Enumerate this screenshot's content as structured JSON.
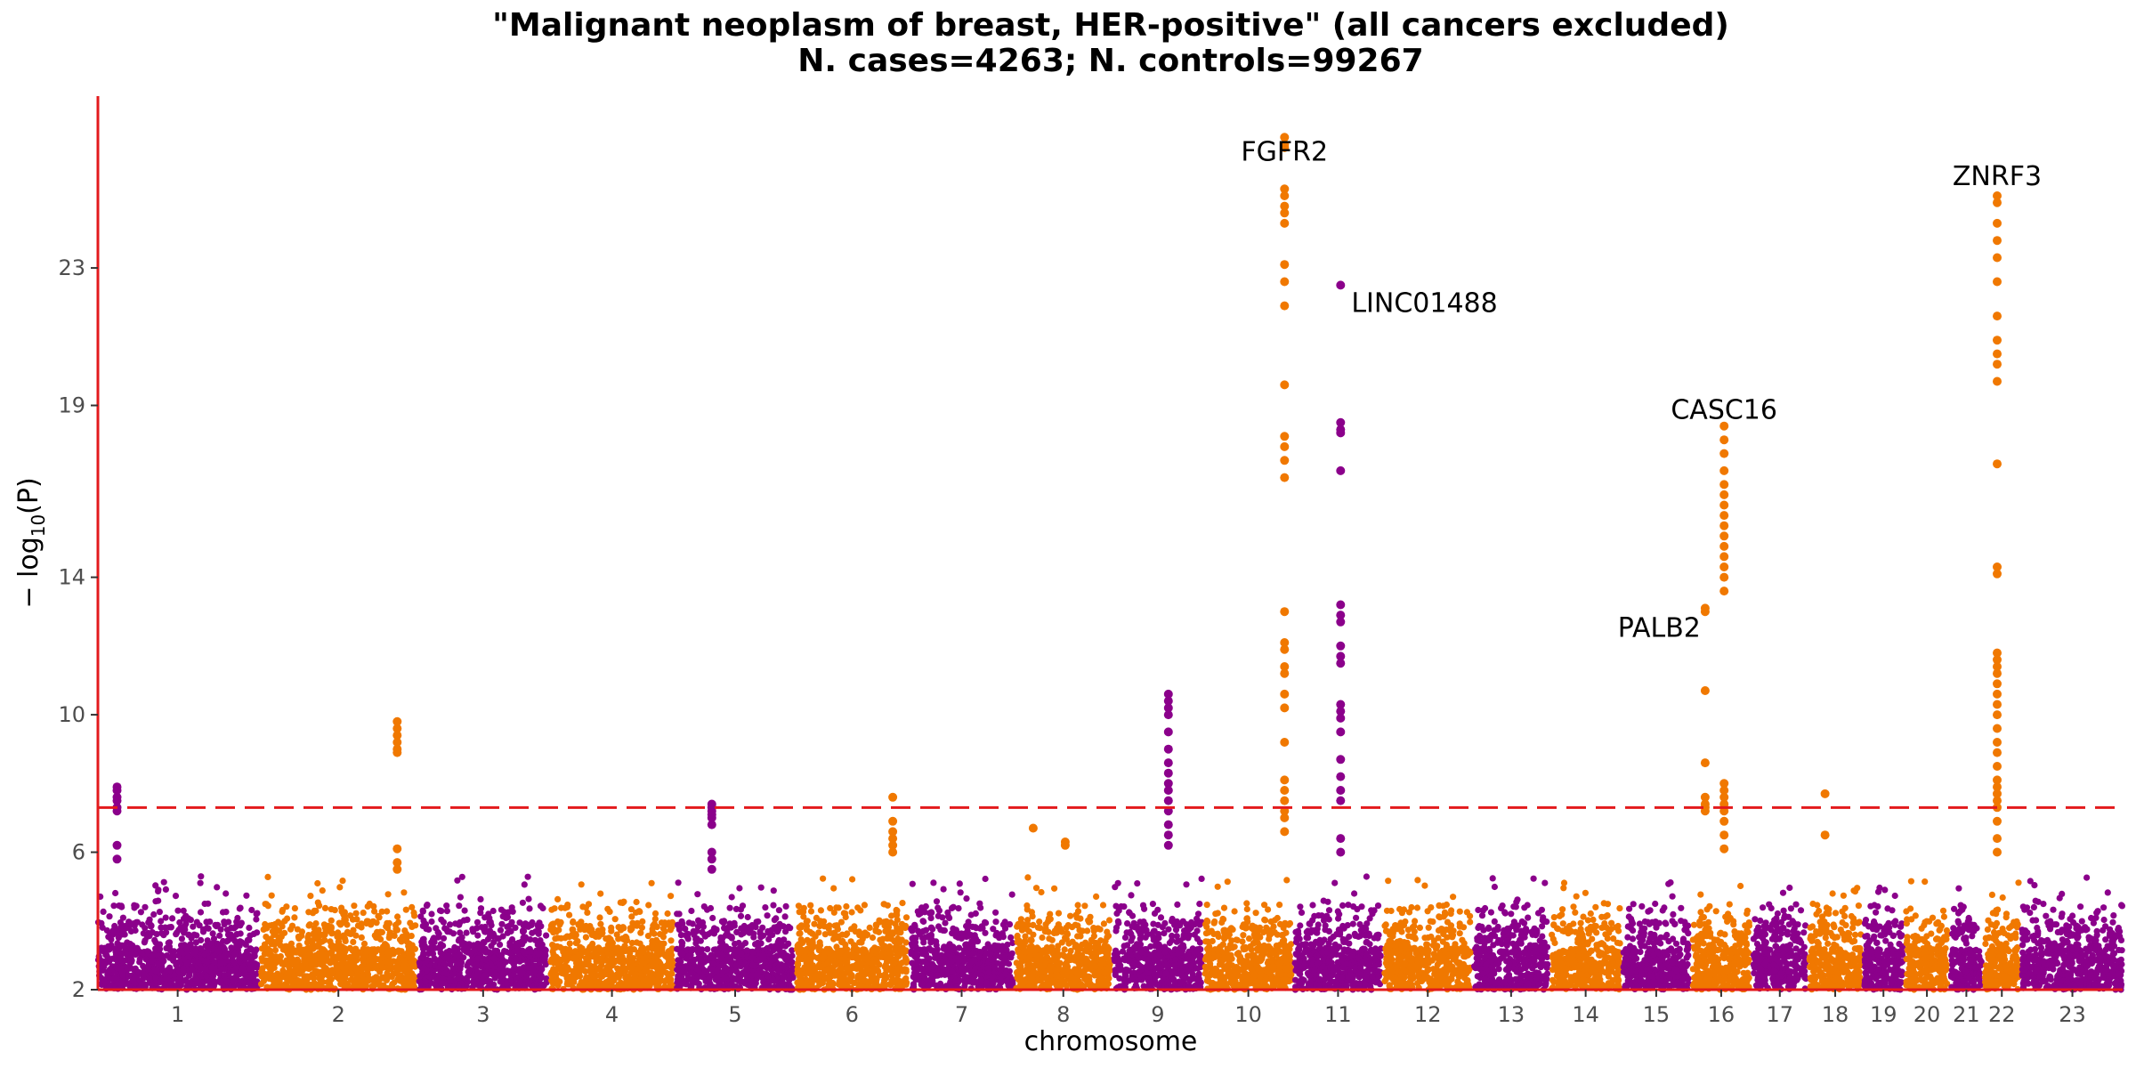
{
  "chart_data": {
    "type": "scatter",
    "title_line1": "\"Malignant neoplasm of breast, HER-positive\" (all cancers excluded)",
    "title_line2": "N. cases=4263; N. controls=99267",
    "xlabel": "chromosome",
    "ylabel_main": "− log",
    "ylabel_sub": "10",
    "ylabel_tail": "(P)",
    "ylim": [
      2,
      28
    ],
    "yticks": [
      "2",
      "6",
      "10",
      "14",
      "19",
      "23"
    ],
    "significance_threshold": 7.3,
    "colors": {
      "odd": "#8b008b",
      "even": "#f07800",
      "threshold": "#e31a1c",
      "axis": "#e31a1c"
    },
    "chromosomes": [
      {
        "label": "1",
        "rel_size": 1.0
      },
      {
        "label": "2",
        "rel_size": 0.97
      },
      {
        "label": "3",
        "rel_size": 0.8
      },
      {
        "label": "4",
        "rel_size": 0.77
      },
      {
        "label": "5",
        "rel_size": 0.73
      },
      {
        "label": "6",
        "rel_size": 0.69
      },
      {
        "label": "7",
        "rel_size": 0.64
      },
      {
        "label": "8",
        "rel_size": 0.59
      },
      {
        "label": "9",
        "rel_size": 0.55
      },
      {
        "label": "10",
        "rel_size": 0.54
      },
      {
        "label": "11",
        "rel_size": 0.54
      },
      {
        "label": "12",
        "rel_size": 0.54
      },
      {
        "label": "13",
        "rel_size": 0.46
      },
      {
        "label": "14",
        "rel_size": 0.43
      },
      {
        "label": "15",
        "rel_size": 0.41
      },
      {
        "label": "16",
        "rel_size": 0.36
      },
      {
        "label": "17",
        "rel_size": 0.33
      },
      {
        "label": "18",
        "rel_size": 0.32
      },
      {
        "label": "19",
        "rel_size": 0.24
      },
      {
        "label": "20",
        "rel_size": 0.26
      },
      {
        "label": "21",
        "rel_size": 0.19
      },
      {
        "label": "22",
        "rel_size": 0.21
      },
      {
        "label": "23",
        "rel_size": 0.63
      }
    ],
    "peaks": [
      {
        "chrom": "1",
        "pos": 0.12,
        "values": [
          7.2,
          7.3,
          7.5,
          7.6,
          7.8,
          7.9,
          6.2,
          5.8
        ]
      },
      {
        "chrom": "2",
        "pos": 0.88,
        "values": [
          8.9,
          9.0,
          9.2,
          9.4,
          9.6,
          9.8,
          6.1,
          5.7,
          5.5
        ]
      },
      {
        "chrom": "5",
        "pos": 0.3,
        "values": [
          6.8,
          7.0,
          7.1,
          7.2,
          7.3,
          7.4,
          6.0,
          5.8,
          5.5
        ]
      },
      {
        "chrom": "6",
        "pos": 0.87,
        "values": [
          7.6,
          6.9,
          6.6,
          6.4,
          6.2,
          6.0
        ]
      },
      {
        "chrom": "8",
        "pos": 0.18,
        "values": [
          6.7
        ]
      },
      {
        "chrom": "8",
        "pos": 0.52,
        "values": [
          6.3,
          6.2
        ]
      },
      {
        "chrom": "9",
        "pos": 0.62,
        "values": [
          7.5,
          7.8,
          8.0,
          8.3,
          8.6,
          9.0,
          9.5,
          10.0,
          10.2,
          10.4,
          10.6,
          7.2,
          6.8,
          6.5,
          6.2
        ]
      },
      {
        "chrom": "10",
        "pos": 0.92,
        "values": [
          26.8,
          26.6,
          26.5,
          25.3,
          25.1,
          24.8,
          24.6,
          24.3,
          23.1,
          22.6,
          21.9,
          19.6,
          18.1,
          17.8,
          17.4,
          16.9,
          13.0,
          12.1,
          11.9,
          11.4,
          11.2,
          10.6,
          10.2,
          9.2,
          8.1,
          7.8,
          7.5,
          7.2,
          7.0,
          6.6
        ]
      },
      {
        "chrom": "11",
        "pos": 0.53,
        "values": [
          22.5,
          18.5,
          18.3,
          18.2,
          17.1,
          13.2,
          12.9,
          12.7,
          12.0,
          11.7,
          11.5,
          10.3,
          10.1,
          9.9,
          9.5,
          8.7,
          8.2,
          7.8,
          7.5,
          6.4,
          6.0
        ]
      },
      {
        "chrom": "16",
        "pos": 0.22,
        "values": [
          13.1,
          13.0,
          10.7,
          8.6,
          7.6,
          7.4,
          7.3,
          7.2
        ]
      },
      {
        "chrom": "16",
        "pos": 0.55,
        "values": [
          18.4,
          18.0,
          17.6,
          17.1,
          16.7,
          16.4,
          16.1,
          15.8,
          15.5,
          15.2,
          14.9,
          14.6,
          14.3,
          14.0,
          13.6,
          8.0,
          7.8,
          7.6,
          7.4,
          7.2,
          6.9,
          6.5,
          6.1
        ]
      },
      {
        "chrom": "18",
        "pos": 0.3,
        "values": [
          7.7,
          6.5
        ]
      },
      {
        "chrom": "22",
        "pos": 0.36,
        "values": [
          25.1,
          24.9,
          24.3,
          23.8,
          23.3,
          22.6,
          21.6,
          20.9,
          20.5,
          20.2,
          19.7,
          17.3,
          14.3,
          14.1,
          11.8,
          11.6,
          11.4,
          11.2,
          10.9,
          10.6,
          10.3,
          10.0,
          9.6,
          9.2,
          8.9,
          8.5,
          8.1,
          7.9,
          7.7,
          7.5,
          7.3,
          6.9,
          6.4,
          6.0
        ]
      }
    ],
    "annotations": [
      {
        "text": "FGFR2",
        "chrom": "10",
        "pos": 0.92,
        "y": 27.0,
        "anchor": "middle",
        "dx": 0,
        "dy": 34
      },
      {
        "text": "LINC01488",
        "chrom": "11",
        "pos": 0.53,
        "y": 22.5,
        "anchor": "start",
        "dx": 12,
        "dy": 30
      },
      {
        "text": "CASC16",
        "chrom": "16",
        "pos": 0.55,
        "y": 18.4,
        "anchor": "middle",
        "dx": 0,
        "dy": -8
      },
      {
        "text": "PALB2",
        "chrom": "16",
        "pos": 0.22,
        "y": 13.1,
        "anchor": "end",
        "dx": -5,
        "dy": 32
      },
      {
        "text": "ZNRF3",
        "chrom": "22",
        "pos": 0.36,
        "y": 25.1,
        "anchor": "middle",
        "dx": 0,
        "dy": -12
      }
    ]
  }
}
